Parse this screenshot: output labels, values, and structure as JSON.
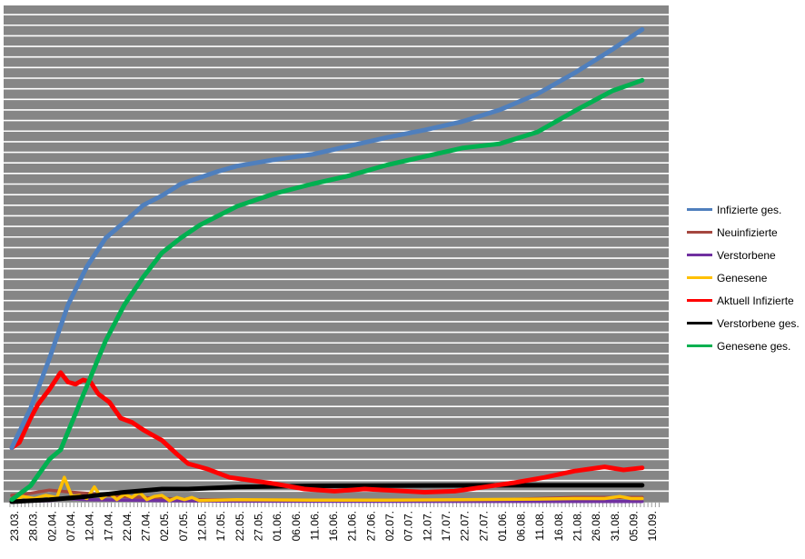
{
  "chart_data": {
    "type": "line",
    "title": "",
    "xlabel": "",
    "ylabel": "",
    "x_start": "23.03.",
    "x_end": "10.09.",
    "x_tick_labels": [
      "23.03.",
      "28.03.",
      "02.04.",
      "07.04.",
      "12.04.",
      "17.04.",
      "22.04.",
      "27.04.",
      "02.05.",
      "07.05.",
      "12.05.",
      "17.05.",
      "22.05.",
      "27.05.",
      "01.06.",
      "06.06.",
      "11.06.",
      "16.06.",
      "21.06.",
      "27.06.",
      "02.07.",
      "07.07.",
      "12.07.",
      "17.07.",
      "22.07.",
      "27.07.",
      "01.06.",
      "06.08.",
      "11.08.",
      "16.08.",
      "21.08.",
      "26.08.",
      "31.08.",
      "05.09.",
      "10.09."
    ],
    "y_tick_labels_shown": false,
    "ylim": [
      0,
      47
    ],
    "grid": true,
    "plot_background": "#868686",
    "grid_color": "#ffffff",
    "legend_position": "right",
    "series": [
      {
        "name": "Infizierte ges.",
        "color": "#4F7FBD",
        "points": [
          [
            "23.03.",
            5.1
          ],
          [
            "28.03.",
            8.8
          ],
          [
            "02.04.",
            13.5
          ],
          [
            "07.04.",
            18.6
          ],
          [
            "12.04.",
            22.2
          ],
          [
            "17.04.",
            24.9
          ],
          [
            "22.04.",
            26.4
          ],
          [
            "27.04.",
            28.0
          ],
          [
            "02.05.",
            28.9
          ],
          [
            "07.05.",
            30.0
          ],
          [
            "12.05.",
            30.6
          ],
          [
            "17.05.",
            31.2
          ],
          [
            "22.05.",
            31.7
          ],
          [
            "01.06.",
            32.3
          ],
          [
            "11.06.",
            32.8
          ],
          [
            "21.06.",
            33.6
          ],
          [
            "01.07.",
            34.4
          ],
          [
            "11.07.",
            35.1
          ],
          [
            "21.07.",
            35.9
          ],
          [
            "31.07.",
            37.0
          ],
          [
            "10.08.",
            38.5
          ],
          [
            "20.08.",
            40.5
          ],
          [
            "30.08.",
            42.7
          ],
          [
            "07.09.",
            44.6
          ]
        ]
      },
      {
        "name": "Neuinfizierte",
        "color": "#A5473F",
        "points": [
          [
            "23.03.",
            0.6
          ],
          [
            "28.03.",
            0.8
          ],
          [
            "02.04.",
            1.1
          ],
          [
            "05.04.",
            1.0
          ],
          [
            "08.04.",
            0.9
          ],
          [
            "12.04.",
            0.8
          ],
          [
            "17.04.",
            0.6
          ],
          [
            "22.04.",
            0.5
          ],
          [
            "02.05.",
            0.3
          ],
          [
            "12.05.",
            0.2
          ],
          [
            "11.06.",
            0.15
          ],
          [
            "31.07.",
            0.2
          ],
          [
            "20.08.",
            0.4
          ],
          [
            "07.09.",
            0.4
          ]
        ]
      },
      {
        "name": "Verstorbene",
        "color": "#7030A0",
        "points": [
          [
            "23.03.",
            0
          ],
          [
            "02.04.",
            0.1
          ],
          [
            "07.04.",
            0.3
          ],
          [
            "12.04.",
            0.2
          ],
          [
            "22.04.",
            0.15
          ],
          [
            "02.05.",
            0.1
          ],
          [
            "22.05.",
            0.05
          ],
          [
            "07.09.",
            0.02
          ]
        ]
      },
      {
        "name": "Genesene",
        "color": "#FFC000",
        "points": [
          [
            "23.03.",
            0.1
          ],
          [
            "26.03.",
            0.5
          ],
          [
            "29.03.",
            0.3
          ],
          [
            "01.04.",
            0.6
          ],
          [
            "04.04.",
            0.4
          ],
          [
            "06.04.",
            2.3
          ],
          [
            "08.04.",
            0.5
          ],
          [
            "10.04.",
            0.6
          ],
          [
            "12.04.",
            0.3
          ],
          [
            "14.04.",
            1.4
          ],
          [
            "16.04.",
            0.3
          ],
          [
            "18.04.",
            0.8
          ],
          [
            "20.04.",
            0.2
          ],
          [
            "22.04.",
            0.7
          ],
          [
            "24.04.",
            0.4
          ],
          [
            "26.04.",
            0.9
          ],
          [
            "28.04.",
            0.2
          ],
          [
            "30.04.",
            0.5
          ],
          [
            "02.05.",
            0.6
          ],
          [
            "04.05.",
            0.1
          ],
          [
            "06.05.",
            0.4
          ],
          [
            "08.05.",
            0.2
          ],
          [
            "10.05.",
            0.4
          ],
          [
            "12.05.",
            0.1
          ],
          [
            "22.05.",
            0.2
          ],
          [
            "11.06.",
            0.15
          ],
          [
            "01.07.",
            0.15
          ],
          [
            "21.07.",
            0.2
          ],
          [
            "10.08.",
            0.25
          ],
          [
            "20.08.",
            0.3
          ],
          [
            "28.08.",
            0.3
          ],
          [
            "01.09.",
            0.5
          ],
          [
            "04.09.",
            0.3
          ],
          [
            "07.09.",
            0.3
          ]
        ]
      },
      {
        "name": "Aktuell Infizierte",
        "color": "#FF0000",
        "points": [
          [
            "23.03.",
            5.1
          ],
          [
            "25.03.",
            5.6
          ],
          [
            "28.03.",
            7.9
          ],
          [
            "30.03.",
            9.2
          ],
          [
            "02.04.",
            10.6
          ],
          [
            "05.04.",
            12.2
          ],
          [
            "07.04.",
            11.3
          ],
          [
            "09.04.",
            11.1
          ],
          [
            "11.04.",
            11.5
          ],
          [
            "13.04.",
            11.3
          ],
          [
            "15.04.",
            10.2
          ],
          [
            "18.04.",
            9.4
          ],
          [
            "21.04.",
            7.9
          ],
          [
            "24.04.",
            7.5
          ],
          [
            "27.04.",
            6.8
          ],
          [
            "02.05.",
            5.8
          ],
          [
            "06.05.",
            4.5
          ],
          [
            "09.05.",
            3.6
          ],
          [
            "14.05.",
            3.1
          ],
          [
            "20.05.",
            2.3
          ],
          [
            "01.06.",
            1.7
          ],
          [
            "09.06.",
            1.2
          ],
          [
            "17.06.",
            1.0
          ],
          [
            "25.06.",
            1.2
          ],
          [
            "11.07.",
            0.9
          ],
          [
            "19.07.",
            1.0
          ],
          [
            "27.07.",
            1.4
          ],
          [
            "04.08.",
            1.8
          ],
          [
            "12.08.",
            2.3
          ],
          [
            "20.08.",
            2.9
          ],
          [
            "28.08.",
            3.3
          ],
          [
            "02.09.",
            3.0
          ],
          [
            "07.09.",
            3.2
          ]
        ]
      },
      {
        "name": "Verstorbene ges.",
        "color": "#000000",
        "points": [
          [
            "23.03.",
            0
          ],
          [
            "02.04.",
            0.2
          ],
          [
            "12.04.",
            0.5
          ],
          [
            "22.04.",
            0.9
          ],
          [
            "02.05.",
            1.2
          ],
          [
            "09.05.",
            1.2
          ],
          [
            "22.05.",
            1.4
          ],
          [
            "11.06.",
            1.5
          ],
          [
            "31.07.",
            1.55
          ],
          [
            "07.09.",
            1.55
          ]
        ]
      },
      {
        "name": "Genesene ges.",
        "color": "#00B050",
        "points": [
          [
            "23.03.",
            0.2
          ],
          [
            "28.03.",
            1.5
          ],
          [
            "02.04.",
            4.0
          ],
          [
            "05.04.",
            4.9
          ],
          [
            "07.04.",
            6.6
          ],
          [
            "10.04.",
            9.2
          ],
          [
            "12.04.",
            10.9
          ],
          [
            "15.04.",
            13.5
          ],
          [
            "17.04.",
            15.2
          ],
          [
            "22.04.",
            18.6
          ],
          [
            "27.04.",
            21.2
          ],
          [
            "02.05.",
            23.5
          ],
          [
            "07.05.",
            24.9
          ],
          [
            "12.05.",
            26.1
          ],
          [
            "17.05.",
            27.0
          ],
          [
            "22.05.",
            27.9
          ],
          [
            "01.06.",
            29.1
          ],
          [
            "11.06.",
            30.0
          ],
          [
            "21.06.",
            30.8
          ],
          [
            "01.07.",
            31.8
          ],
          [
            "11.07.",
            32.6
          ],
          [
            "21.07.",
            33.4
          ],
          [
            "31.07.",
            33.8
          ],
          [
            "10.08.",
            34.9
          ],
          [
            "20.08.",
            36.9
          ],
          [
            "30.08.",
            38.8
          ],
          [
            "07.09.",
            39.8
          ]
        ]
      }
    ]
  }
}
